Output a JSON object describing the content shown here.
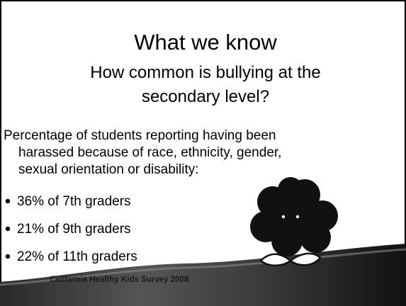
{
  "slide": {
    "title": "What we know",
    "subtitle": [
      "How common is bullying at the",
      "secondary level?"
    ],
    "intro": [
      "Percentage of students reporting having been",
      "harassed because of race, ethnicity, gender,",
      "sexual orientation or disability:"
    ],
    "bullets": [
      "36% of 7th graders",
      "21% of 9th graders",
      "22% of 11th graders"
    ],
    "footer": "California Healthy Kids Survey 2008"
  }
}
